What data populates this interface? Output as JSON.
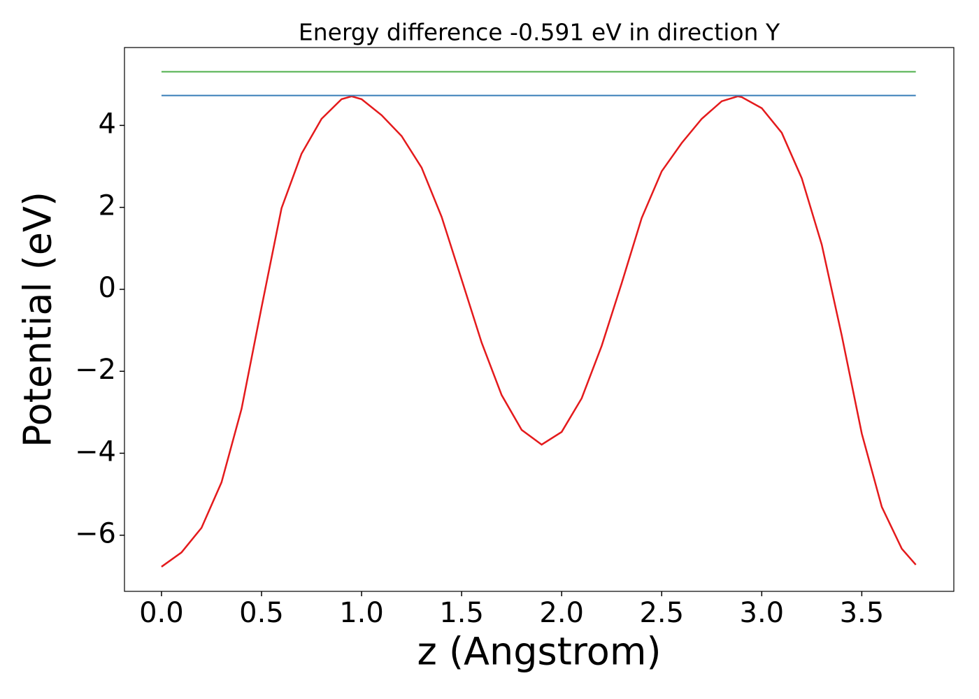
{
  "chart_data": {
    "type": "line",
    "title": "Energy difference -0.591 eV in direction Y",
    "xlabel": "z (Angstrom)",
    "ylabel": "Potential (eV)",
    "series": [
      {
        "color": "#e41a1c",
        "x": [
          0,
          0.1,
          0.2,
          0.3,
          0.4,
          0.5,
          0.6,
          0.7,
          0.8,
          0.9,
          0.95,
          1.0,
          1.1,
          1.2,
          1.3,
          1.4,
          1.5,
          1.6,
          1.7,
          1.8,
          1.9,
          2.0,
          2.1,
          2.2,
          2.3,
          2.4,
          2.5,
          2.6,
          2.7,
          2.8,
          2.88,
          2.9,
          3.0,
          3.1,
          3.2,
          3.3,
          3.4,
          3.5,
          3.6,
          3.7,
          3.77
        ],
        "values": [
          -6.77,
          -6.42,
          -5.82,
          -4.71,
          -2.92,
          -0.44,
          1.98,
          3.31,
          4.16,
          4.64,
          4.71,
          4.64,
          4.25,
          3.74,
          2.97,
          1.77,
          0.24,
          -1.3,
          -2.58,
          -3.43,
          -3.79,
          -3.48,
          -2.66,
          -1.38,
          0.15,
          1.74,
          2.88,
          3.57,
          4.16,
          4.59,
          4.71,
          4.69,
          4.42,
          3.82,
          2.71,
          1.09,
          -1.13,
          -3.52,
          -5.31,
          -6.33,
          -6.72
        ]
      },
      {
        "color": "#4daf4a",
        "x": [
          0,
          3.77
        ],
        "values": [
          5.31,
          5.31
        ]
      },
      {
        "color": "#377eb8",
        "x": [
          0,
          3.77
        ],
        "values": [
          4.73,
          4.73
        ]
      }
    ],
    "xlim": [
      -0.185,
      3.96
    ],
    "ylim": [
      -7.37,
      5.9
    ],
    "xticks": [
      {
        "value": 0,
        "label": "0.0"
      },
      0.5,
      {
        "value": 1,
        "label": "1.0"
      },
      1.5,
      {
        "value": 2,
        "label": "2.0"
      },
      2.5,
      {
        "value": 3,
        "label": "3.0"
      },
      3.5
    ],
    "yticks": [
      {
        "value": -6,
        "label": "−6"
      },
      {
        "value": -4,
        "label": "−4"
      },
      {
        "value": -2,
        "label": "−2"
      },
      0,
      2,
      4
    ]
  }
}
